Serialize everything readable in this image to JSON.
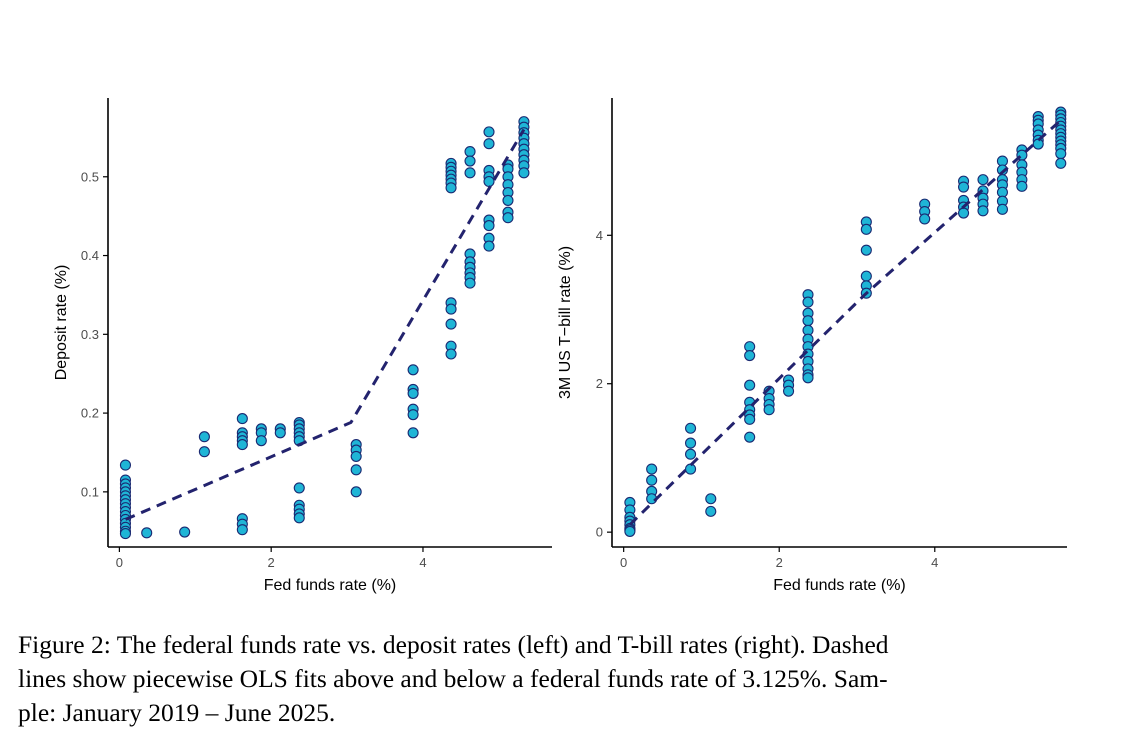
{
  "chart_data": [
    {
      "type": "scatter",
      "title": "",
      "xlabel": "Fed funds rate (%)",
      "ylabel": "Deposit rate (%)",
      "xlim": [
        -0.15,
        5.7
      ],
      "ylim": [
        0.03,
        0.6
      ],
      "xticks": [
        0,
        2,
        4
      ],
      "xtick_labels": [
        "0",
        "2",
        "4"
      ],
      "yticks": [
        0.1,
        0.2,
        0.3,
        0.4,
        0.5
      ],
      "ytick_labels": [
        "0.1",
        "0.2",
        "0.3",
        "0.4",
        "0.5"
      ],
      "grid": false,
      "colors": {
        "point_fill": "#1fb5d6",
        "point_edge": "#1a2a72",
        "fit_line": "#23236e"
      },
      "points": [
        [
          0.08,
          0.134
        ],
        [
          0.08,
          0.115
        ],
        [
          0.08,
          0.11
        ],
        [
          0.08,
          0.105
        ],
        [
          0.08,
          0.1
        ],
        [
          0.08,
          0.095
        ],
        [
          0.08,
          0.09
        ],
        [
          0.08,
          0.085
        ],
        [
          0.08,
          0.08
        ],
        [
          0.08,
          0.075
        ],
        [
          0.08,
          0.07
        ],
        [
          0.08,
          0.065
        ],
        [
          0.08,
          0.06
        ],
        [
          0.08,
          0.055
        ],
        [
          0.08,
          0.05
        ],
        [
          0.08,
          0.047
        ],
        [
          0.36,
          0.048
        ],
        [
          0.86,
          0.049
        ],
        [
          1.12,
          0.17
        ],
        [
          1.12,
          0.151
        ],
        [
          1.62,
          0.193
        ],
        [
          1.62,
          0.175
        ],
        [
          1.62,
          0.17
        ],
        [
          1.62,
          0.165
        ],
        [
          1.62,
          0.16
        ],
        [
          1.62,
          0.066
        ],
        [
          1.62,
          0.059
        ],
        [
          1.62,
          0.052
        ],
        [
          1.87,
          0.18
        ],
        [
          1.87,
          0.175
        ],
        [
          1.87,
          0.165
        ],
        [
          2.12,
          0.18
        ],
        [
          2.12,
          0.175
        ],
        [
          2.37,
          0.188
        ],
        [
          2.37,
          0.185
        ],
        [
          2.37,
          0.18
        ],
        [
          2.37,
          0.175
        ],
        [
          2.37,
          0.17
        ],
        [
          2.37,
          0.165
        ],
        [
          2.37,
          0.105
        ],
        [
          2.37,
          0.083
        ],
        [
          2.37,
          0.078
        ],
        [
          2.37,
          0.072
        ],
        [
          2.37,
          0.067
        ],
        [
          3.12,
          0.16
        ],
        [
          3.12,
          0.153
        ],
        [
          3.12,
          0.145
        ],
        [
          3.12,
          0.128
        ],
        [
          3.12,
          0.1
        ],
        [
          3.87,
          0.255
        ],
        [
          3.87,
          0.23
        ],
        [
          3.87,
          0.225
        ],
        [
          3.87,
          0.205
        ],
        [
          3.87,
          0.198
        ],
        [
          3.87,
          0.175
        ],
        [
          4.37,
          0.517
        ],
        [
          4.37,
          0.512
        ],
        [
          4.37,
          0.507
        ],
        [
          4.37,
          0.502
        ],
        [
          4.37,
          0.497
        ],
        [
          4.37,
          0.492
        ],
        [
          4.37,
          0.486
        ],
        [
          4.37,
          0.34
        ],
        [
          4.37,
          0.332
        ],
        [
          4.37,
          0.313
        ],
        [
          4.37,
          0.285
        ],
        [
          4.37,
          0.275
        ],
        [
          4.62,
          0.532
        ],
        [
          4.62,
          0.52
        ],
        [
          4.62,
          0.505
        ],
        [
          4.62,
          0.402
        ],
        [
          4.62,
          0.392
        ],
        [
          4.62,
          0.385
        ],
        [
          4.62,
          0.378
        ],
        [
          4.62,
          0.372
        ],
        [
          4.62,
          0.365
        ],
        [
          4.87,
          0.557
        ],
        [
          4.87,
          0.542
        ],
        [
          4.87,
          0.508
        ],
        [
          4.87,
          0.5
        ],
        [
          4.87,
          0.494
        ],
        [
          4.87,
          0.445
        ],
        [
          4.87,
          0.438
        ],
        [
          4.87,
          0.422
        ],
        [
          4.87,
          0.412
        ],
        [
          5.12,
          0.515
        ],
        [
          5.12,
          0.51
        ],
        [
          5.12,
          0.5
        ],
        [
          5.12,
          0.49
        ],
        [
          5.12,
          0.48
        ],
        [
          5.12,
          0.47
        ],
        [
          5.12,
          0.455
        ],
        [
          5.12,
          0.448
        ],
        [
          5.33,
          0.57
        ],
        [
          5.33,
          0.563
        ],
        [
          5.33,
          0.556
        ],
        [
          5.33,
          0.549
        ],
        [
          5.33,
          0.542
        ],
        [
          5.33,
          0.535
        ],
        [
          5.33,
          0.528
        ],
        [
          5.33,
          0.521
        ],
        [
          5.33,
          0.514
        ],
        [
          5.33,
          0.505
        ]
      ],
      "fit_line": [
        [
          0.08,
          0.065
        ],
        [
          3.05,
          0.188
        ],
        [
          5.33,
          0.56
        ]
      ]
    },
    {
      "type": "scatter",
      "title": "",
      "xlabel": "Fed funds rate (%)",
      "ylabel": "3M US T−bill rate (%)",
      "xlim": [
        -0.15,
        5.7
      ],
      "ylim": [
        -0.2,
        5.85
      ],
      "xticks": [
        0,
        2,
        4
      ],
      "xtick_labels": [
        "0",
        "2",
        "4"
      ],
      "yticks": [
        0,
        2,
        4
      ],
      "ytick_labels": [
        "0",
        "2",
        "4"
      ],
      "grid": false,
      "colors": {
        "point_fill": "#1fb5d6",
        "point_edge": "#1a2a72",
        "fit_line": "#23236e"
      },
      "points": [
        [
          0.08,
          0.4
        ],
        [
          0.08,
          0.3
        ],
        [
          0.08,
          0.2
        ],
        [
          0.08,
          0.15
        ],
        [
          0.08,
          0.1
        ],
        [
          0.08,
          0.05
        ],
        [
          0.08,
          0.03
        ],
        [
          0.08,
          0.01
        ],
        [
          0.36,
          0.85
        ],
        [
          0.36,
          0.7
        ],
        [
          0.36,
          0.55
        ],
        [
          0.36,
          0.45
        ],
        [
          0.86,
          1.4
        ],
        [
          0.86,
          1.2
        ],
        [
          0.86,
          1.05
        ],
        [
          0.86,
          0.85
        ],
        [
          1.12,
          0.45
        ],
        [
          1.12,
          0.28
        ],
        [
          1.62,
          2.5
        ],
        [
          1.62,
          2.38
        ],
        [
          1.62,
          1.98
        ],
        [
          1.62,
          1.75
        ],
        [
          1.62,
          1.65
        ],
        [
          1.62,
          1.58
        ],
        [
          1.62,
          1.52
        ],
        [
          1.62,
          1.28
        ],
        [
          1.87,
          1.9
        ],
        [
          1.87,
          1.8
        ],
        [
          1.87,
          1.72
        ],
        [
          1.87,
          1.65
        ],
        [
          2.12,
          2.05
        ],
        [
          2.12,
          1.98
        ],
        [
          2.12,
          1.9
        ],
        [
          2.37,
          3.2
        ],
        [
          2.37,
          3.1
        ],
        [
          2.37,
          2.95
        ],
        [
          2.37,
          2.85
        ],
        [
          2.37,
          2.72
        ],
        [
          2.37,
          2.6
        ],
        [
          2.37,
          2.5
        ],
        [
          2.37,
          2.4
        ],
        [
          2.37,
          2.3
        ],
        [
          2.37,
          2.2
        ],
        [
          2.37,
          2.12
        ],
        [
          2.37,
          2.08
        ],
        [
          3.12,
          4.18
        ],
        [
          3.12,
          4.08
        ],
        [
          3.12,
          3.8
        ],
        [
          3.12,
          3.45
        ],
        [
          3.12,
          3.32
        ],
        [
          3.12,
          3.22
        ],
        [
          3.87,
          4.42
        ],
        [
          3.87,
          4.32
        ],
        [
          3.87,
          4.22
        ],
        [
          4.37,
          4.73
        ],
        [
          4.37,
          4.65
        ],
        [
          4.37,
          4.47
        ],
        [
          4.37,
          4.38
        ],
        [
          4.37,
          4.3
        ],
        [
          4.62,
          4.75
        ],
        [
          4.62,
          4.6
        ],
        [
          4.62,
          4.5
        ],
        [
          4.62,
          4.42
        ],
        [
          4.62,
          4.33
        ],
        [
          4.87,
          5.0
        ],
        [
          4.87,
          4.88
        ],
        [
          4.87,
          4.75
        ],
        [
          4.87,
          4.68
        ],
        [
          4.87,
          4.58
        ],
        [
          4.87,
          4.46
        ],
        [
          4.87,
          4.35
        ],
        [
          5.12,
          5.15
        ],
        [
          5.12,
          5.08
        ],
        [
          5.12,
          4.95
        ],
        [
          5.12,
          4.85
        ],
        [
          5.12,
          4.75
        ],
        [
          5.12,
          4.66
        ],
        [
          5.33,
          5.6
        ],
        [
          5.33,
          5.55
        ],
        [
          5.33,
          5.5
        ],
        [
          5.33,
          5.42
        ],
        [
          5.33,
          5.35
        ],
        [
          5.33,
          5.28
        ],
        [
          5.33,
          5.23
        ],
        [
          5.62,
          5.66
        ],
        [
          5.62,
          5.62
        ],
        [
          5.62,
          5.57
        ],
        [
          5.62,
          5.52
        ],
        [
          5.62,
          5.47
        ],
        [
          5.62,
          5.42
        ],
        [
          5.62,
          5.37
        ],
        [
          5.62,
          5.32
        ],
        [
          5.62,
          5.27
        ],
        [
          5.62,
          5.22
        ],
        [
          5.62,
          5.17
        ],
        [
          5.62,
          5.1
        ],
        [
          5.62,
          4.97
        ]
      ],
      "fit_line": [
        [
          0.08,
          0.1
        ],
        [
          3.1,
          3.2
        ],
        [
          5.62,
          5.55
        ]
      ]
    }
  ],
  "caption": {
    "line1": "Figure 2: The federal funds rate vs. deposit rates (left) and T-bill rates (right). Dashed",
    "line2": "lines show piecewise OLS fits above and below a federal funds rate of 3.125%. Sam-",
    "line3": "ple: January 2019 – June 2025."
  }
}
